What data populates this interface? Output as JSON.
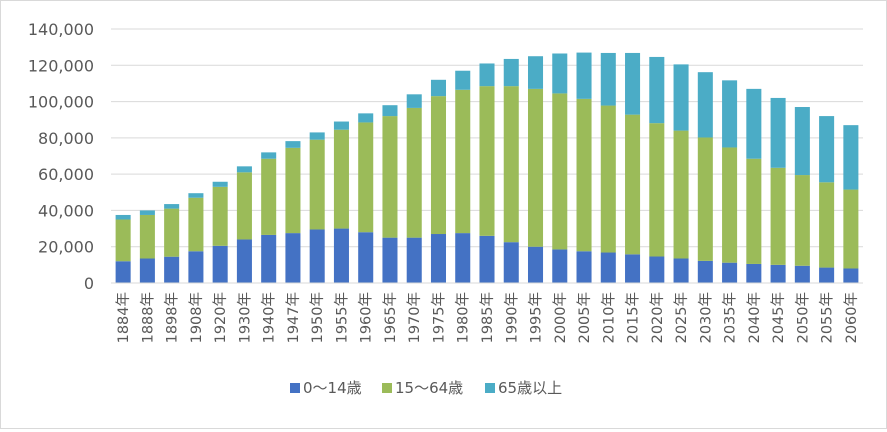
{
  "chart_data": {
    "type": "bar",
    "stacked": true,
    "title": "",
    "xlabel": "",
    "ylabel": "",
    "ylim": [
      0,
      140000
    ],
    "y_ticks": [
      0,
      20000,
      40000,
      60000,
      80000,
      100000,
      120000,
      140000
    ],
    "y_tick_labels": [
      "0",
      "20,000",
      "40,000",
      "60,000",
      "80,000",
      "100,000",
      "120,000",
      "140,000"
    ],
    "grid": true,
    "legend_position": "bottom",
    "categories": [
      "1884年",
      "1888年",
      "1898年",
      "1908年",
      "1920年",
      "1930年",
      "1940年",
      "1947年",
      "1950年",
      "1955年",
      "1960年",
      "1965年",
      "1970年",
      "1975年",
      "1980年",
      "1985年",
      "1990年",
      "1995年",
      "2000年",
      "2005年",
      "2010年",
      "2015年",
      "2020年",
      "2025年",
      "2030年",
      "2035年",
      "2040年",
      "2045年",
      "2050年",
      "2055年",
      "2060年"
    ],
    "series": [
      {
        "name": "0〜14歳",
        "color": "#4472c4",
        "values": [
          12000,
          13500,
          14500,
          17500,
          20500,
          24000,
          26500,
          27500,
          29500,
          30000,
          28000,
          25000,
          25000,
          27000,
          27500,
          26000,
          22500,
          20000,
          18500,
          17500,
          16800,
          15800,
          14600,
          13500,
          12200,
          11200,
          10500,
          10000,
          9500,
          8500,
          8000
        ]
      },
      {
        "name": "15〜64歳",
        "color": "#9bbb59",
        "values": [
          23000,
          24000,
          26500,
          29500,
          32500,
          37000,
          42000,
          47000,
          49500,
          54500,
          60500,
          67000,
          71500,
          76000,
          79000,
          82500,
          86000,
          87000,
          86000,
          84000,
          81000,
          77000,
          73500,
          70500,
          68000,
          63500,
          58000,
          53500,
          50000,
          47000,
          43500
        ]
      },
      {
        "name": "65歳以上",
        "color": "#4bacc6",
        "values": [
          2500,
          2500,
          2500,
          2500,
          2800,
          3300,
          3500,
          3700,
          4000,
          4500,
          5000,
          6000,
          7500,
          9000,
          10500,
          12500,
          15000,
          18000,
          22000,
          25500,
          29000,
          34000,
          36500,
          36500,
          36000,
          37000,
          38500,
          38500,
          37500,
          36500,
          35500
        ]
      }
    ]
  }
}
